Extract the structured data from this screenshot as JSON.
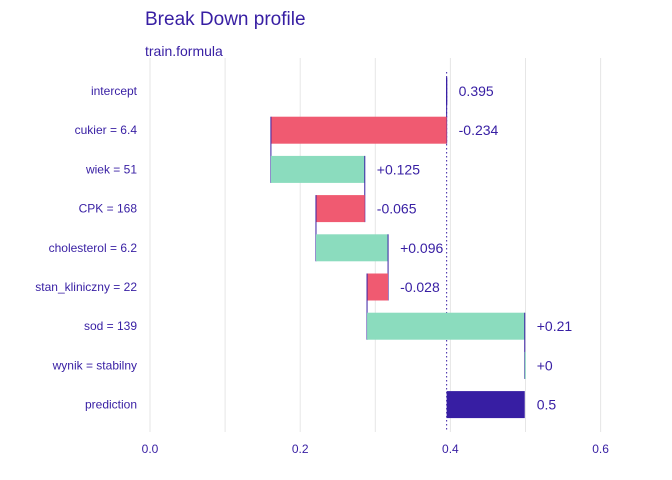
{
  "chart_data": {
    "type": "bar",
    "subtype": "waterfall",
    "title": "Break Down profile",
    "subtitle": "train.formula",
    "xlabel": "",
    "ylabel": "",
    "xlim": [
      0,
      0.62
    ],
    "x_ticks": [
      "0.0",
      "0.2",
      "0.4",
      "0.6"
    ],
    "x_tick_values": [
      0,
      0.2,
      0.4,
      0.6
    ],
    "grid": true,
    "baseline": 0.395,
    "rows": [
      {
        "label": "intercept",
        "start": 0.395,
        "end": 0.395,
        "value_label": "0.395",
        "kind": "intercept"
      },
      {
        "label": "cukier = 6.4",
        "start": 0.395,
        "end": 0.161,
        "value_label": "-0.234",
        "kind": "negative"
      },
      {
        "label": "wiek = 51",
        "start": 0.161,
        "end": 0.286,
        "value_label": "+0.125",
        "kind": "positive"
      },
      {
        "label": "CPK = 168",
        "start": 0.286,
        "end": 0.221,
        "value_label": "-0.065",
        "kind": "negative"
      },
      {
        "label": "cholesterol = 6.2",
        "start": 0.221,
        "end": 0.317,
        "value_label": "+0.096",
        "kind": "positive"
      },
      {
        "label": "stan_kliniczny = 22",
        "start": 0.317,
        "end": 0.289,
        "value_label": "-0.028",
        "kind": "negative"
      },
      {
        "label": "sod = 139",
        "start": 0.289,
        "end": 0.499,
        "value_label": "+0.21",
        "kind": "positive"
      },
      {
        "label": "wynik = stabilny",
        "start": 0.499,
        "end": 0.499,
        "value_label": "+0",
        "kind": "positive"
      },
      {
        "label": "prediction",
        "start": 0.395,
        "end": 0.499,
        "value_label": "0.5",
        "kind": "prediction"
      }
    ],
    "colors": {
      "positive": "#8bdcbe",
      "negative": "#f05a71",
      "prediction": "#371ea3",
      "connector": "#371ea3",
      "grid": "#e6e6e6",
      "text": "#371ea3"
    }
  }
}
